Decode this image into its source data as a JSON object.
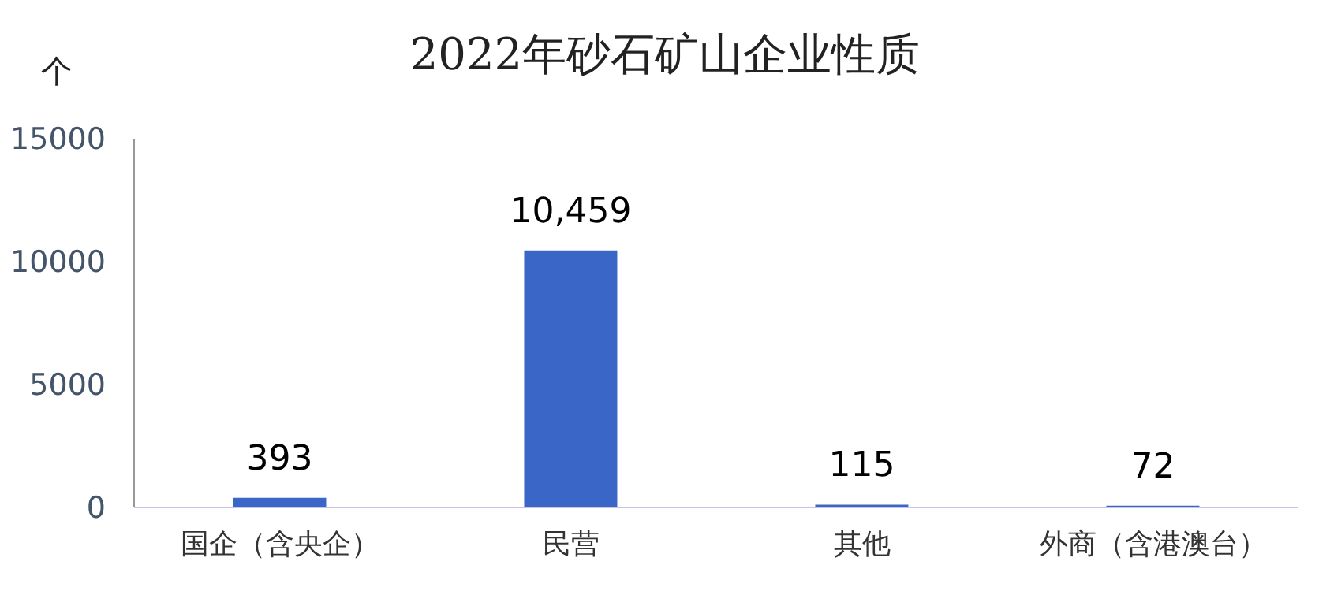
{
  "chart_data": {
    "type": "bar",
    "title": "2022年砂石矿山企业性质",
    "ylabel": "个",
    "categories": [
      "国企（含央企）",
      "民营",
      "其他",
      "外商（含港澳台）"
    ],
    "values": [
      393,
      10459,
      115,
      72
    ],
    "value_labels": [
      "393",
      "10,459",
      "115",
      "72"
    ],
    "color": "#3a66c8",
    "ylim": [
      0,
      15000
    ],
    "yticks": [
      0,
      5000,
      10000,
      15000
    ],
    "grid": false,
    "legend": false
  }
}
